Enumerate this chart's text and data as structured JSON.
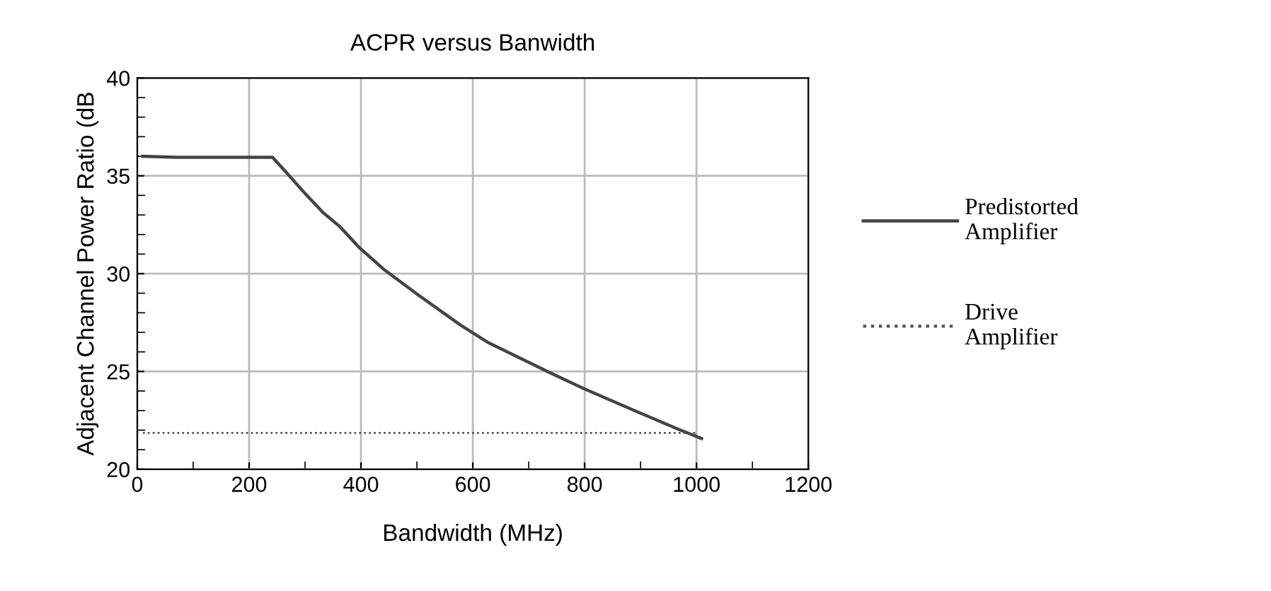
{
  "chart_data": {
    "type": "line",
    "title": "ACPR versus Banwidth",
    "xlabel": "Bandwidth (MHz)",
    "ylabel": "Adjacent Channel Power Ratio (dB",
    "xlim": [
      0,
      1200
    ],
    "xticks": [
      0,
      200,
      400,
      600,
      800,
      1000,
      1200
    ],
    "ylim": [
      20,
      40
    ],
    "yticks": [
      20,
      25,
      30,
      35,
      40
    ],
    "grid": true,
    "legend": "right",
    "marker": "none",
    "series": [
      {
        "name": "Predistorted\nAmplifier",
        "color": "#444444",
        "line_style": "solid",
        "x": [
          10,
          70,
          242,
          270,
          300,
          332,
          362,
          397,
          440,
          502,
          579,
          626,
          734,
          800,
          889,
          967,
          1009
        ],
        "values": [
          36.0,
          35.95,
          35.95,
          35.06,
          34.1,
          33.13,
          32.41,
          31.33,
          30.24,
          28.92,
          27.35,
          26.5,
          24.99,
          24.1,
          23.0,
          22.05,
          21.57
        ]
      },
      {
        "name": "Drive\nAmplifier",
        "color": "#555555",
        "line_style": "dotted",
        "x": [
          10,
          1000
        ],
        "values": [
          21.86,
          21.86
        ]
      }
    ]
  }
}
